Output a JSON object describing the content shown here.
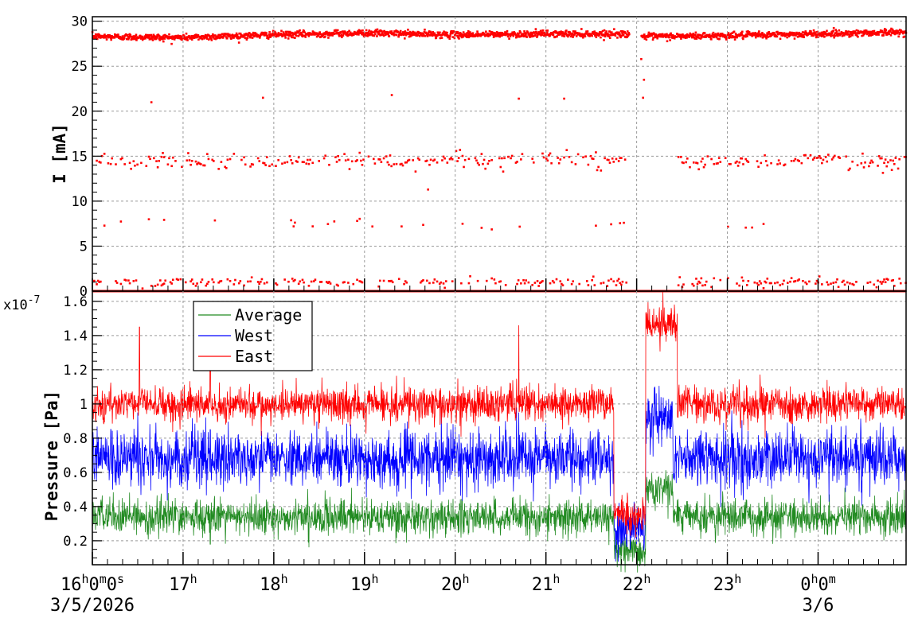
{
  "time_axis": {
    "labels": [
      {
        "t": 0,
        "text": "16h0m0s"
      },
      {
        "t": 1,
        "text": "17h"
      },
      {
        "t": 2,
        "text": "18h"
      },
      {
        "t": 3,
        "text": "19h"
      },
      {
        "t": 4,
        "text": "20h"
      },
      {
        "t": 5,
        "text": "21h"
      },
      {
        "t": 6,
        "text": "22h"
      },
      {
        "t": 7,
        "text": "23h"
      },
      {
        "t": 8,
        "text": "0h0m"
      }
    ],
    "date_labels": [
      {
        "t": 0,
        "text": "3/5/2026"
      },
      {
        "t": 8,
        "text": "3/6"
      }
    ],
    "range_hours": [
      0,
      8.97
    ]
  },
  "chart_data": [
    {
      "type": "scatter",
      "panel": "top",
      "ylabel": "I [mA]",
      "ylim": [
        0,
        30.5
      ],
      "yticks": [
        0,
        5,
        10,
        15,
        20,
        25,
        30
      ],
      "grid": true,
      "series": [
        {
          "color": "#ff0000",
          "description_points": {
            "main_level": [
              [
                0,
                28.3
              ],
              [
                1,
                28.2
              ],
              [
                2,
                28.5
              ],
              [
                3,
                28.7
              ],
              [
                4,
                28.5
              ],
              [
                5,
                28.6
              ],
              [
                5.9,
                28.6
              ],
              [
                6.1,
                28.3
              ],
              [
                7,
                28.4
              ],
              [
                8,
                28.6
              ],
              [
                8.97,
                28.8
              ]
            ],
            "gap": [
              [
                5.92,
                6.05
              ]
            ],
            "sparse_levels": [
              14.5,
              7.5,
              1.0,
              0.0
            ],
            "outliers": [
              [
                0.65,
                21.0
              ],
              [
                1.88,
                21.5
              ],
              [
                3.3,
                21.8
              ],
              [
                4.7,
                21.4
              ],
              [
                5.2,
                21.4
              ],
              [
                6.07,
                21.5
              ],
              [
                3.7,
                11.3
              ],
              [
                6.05,
                25.8
              ],
              [
                6.08,
                23.5
              ]
            ]
          }
        }
      ]
    },
    {
      "type": "line",
      "panel": "bottom",
      "ylabel": "Pressure [Pa]",
      "y_exponent": "x10-7",
      "ylim": [
        0.06,
        1.66
      ],
      "yticks": [
        0.2,
        0.4,
        0.6,
        0.8,
        1.0,
        1.2,
        1.4,
        1.6
      ],
      "ytick_labels": [
        "0.2",
        "0.4",
        "0.6",
        "0.8",
        "1",
        "1.2",
        "1.4",
        "1.6"
      ],
      "grid": true,
      "legend": "top-left",
      "series": [
        {
          "name": "Average",
          "color": "#228b22",
          "baseline": 0.34,
          "noise": 0.05,
          "events": [
            [
              5.75,
              6.1,
              0.13
            ],
            [
              6.1,
              6.4,
              0.5
            ]
          ],
          "spikes": [
            [
              0.5,
              0.45
            ],
            [
              1.3,
              0.18
            ]
          ]
        },
        {
          "name": "West",
          "color": "#0000ff",
          "baseline": 0.68,
          "noise": 0.08,
          "events": [
            [
              5.75,
              6.1,
              0.27
            ],
            [
              6.1,
              6.4,
              0.92
            ]
          ],
          "spikes": [
            [
              0.5,
              0.95
            ],
            [
              1.3,
              0.85
            ],
            [
              4.7,
              0.95
            ]
          ]
        },
        {
          "name": "East",
          "color": "#ff0000",
          "baseline": 1.0,
          "noise": 0.05,
          "events": [
            [
              5.75,
              6.1,
              0.35
            ],
            [
              6.1,
              6.45,
              1.47
            ]
          ],
          "spikes": [
            [
              0.52,
              1.45
            ],
            [
              1.3,
              1.42
            ],
            [
              4.7,
              1.46
            ]
          ]
        }
      ]
    }
  ]
}
